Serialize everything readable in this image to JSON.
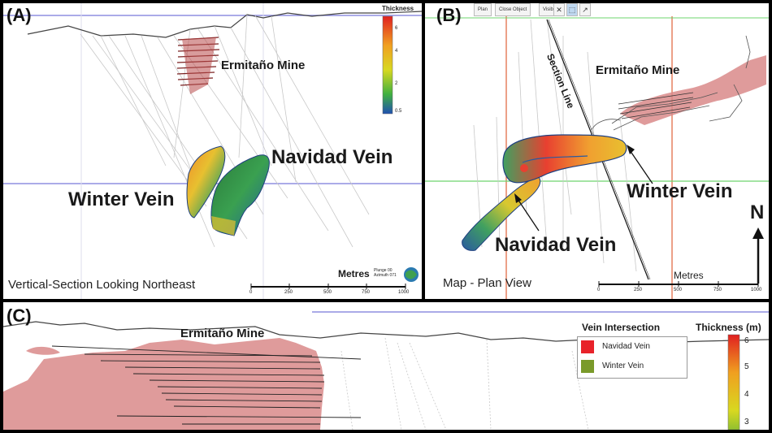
{
  "panel_a": {
    "label": "(A)",
    "mine_label": "Ermitaño Mine",
    "vein1": "Navidad Vein",
    "vein2": "Winter Vein",
    "caption": "Vertical-Section Looking Northeast",
    "colorbar_title": "Thickness",
    "colorbar_ticks": [
      "6",
      "4",
      "2",
      "0.5"
    ],
    "scale_unit": "Metres",
    "scale_ticks": [
      "0",
      "250",
      "500",
      "750",
      "1000"
    ],
    "orient_text": "Plunge 00 Azimuth 071"
  },
  "panel_b": {
    "label": "(B)",
    "toolbar": [
      "Plan",
      "Close Object",
      "Visibility"
    ],
    "section_line": "Section Line",
    "mine_label": "Ermitaño Mine",
    "vein1": "Winter Vein",
    "vein2": "Navidad Vein",
    "north": "N",
    "caption": "Map - Plan View",
    "scale_unit": "Metres",
    "scale_ticks": [
      "0",
      "250",
      "500",
      "750",
      "1000"
    ]
  },
  "panel_c": {
    "label": "(C)",
    "mine_label": "Ermitaño Mine",
    "legend_title": "Vein Intersection",
    "legend_items": [
      {
        "name": "Navidad Vein",
        "color": "#e8232a"
      },
      {
        "name": "Winter Vein",
        "color": "#7a9a2a"
      }
    ],
    "colorbar_title": "Thickness (m)",
    "colorbar_ticks": [
      "6",
      "5",
      "4",
      "3"
    ]
  },
  "colors": {
    "mine": "#d98a8a",
    "grid_blue": "#8f8fe0",
    "grid_green": "#6dd46d",
    "grid_red": "#e0623a"
  }
}
